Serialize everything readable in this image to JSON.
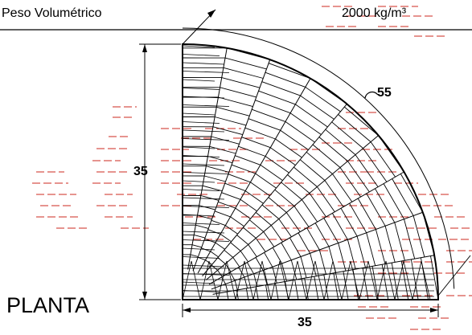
{
  "header": {
    "weight_label": "Peso Volumétrico",
    "weight_value": "2000 kg/m³"
  },
  "dimensions": {
    "vertical": "35",
    "horizontal": "35",
    "arc": "55"
  },
  "view_title": "PLANTA",
  "colors": {
    "line": "#000000",
    "hatch": "#cc2a1f",
    "background": "#ffffff"
  }
}
